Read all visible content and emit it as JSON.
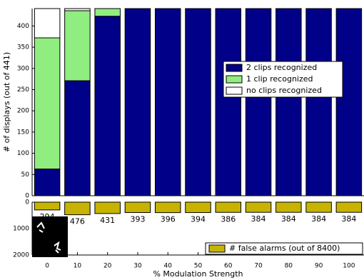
{
  "chart_data": [
    {
      "type": "stacked_bar",
      "ylabel": "# of displays (out of 441)",
      "ylim": [
        0,
        441
      ],
      "yticks": [
        0,
        50,
        100,
        150,
        200,
        250,
        300,
        350,
        400
      ],
      "legend": "center-right",
      "series": [
        {
          "name": "2 clips recognized",
          "color": "#000088",
          "values": [
            63,
            271,
            423,
            441,
            441,
            441,
            441,
            441,
            441,
            441,
            441
          ]
        },
        {
          "name": "1 clip recognized",
          "color": "#90ee80",
          "values": [
            309,
            165,
            18,
            0,
            0,
            0,
            0,
            0,
            0,
            0,
            0
          ]
        },
        {
          "name": "no clips recognized",
          "color": "#ffffff",
          "values": [
            69,
            5,
            0,
            0,
            0,
            0,
            0,
            0,
            0,
            0,
            0
          ]
        }
      ]
    },
    {
      "type": "bar",
      "xlabel": "% Modulation Strength",
      "categories": [
        "0",
        "10",
        "20",
        "30",
        "40",
        "50",
        "60",
        "70",
        "80",
        "90",
        "100"
      ],
      "ylim": [
        0,
        2000
      ],
      "y_inverted": true,
      "yticks": [
        0,
        1000,
        2000
      ],
      "legend": "lower-right",
      "series": [
        {
          "name": "# false alarms (out of 8400)",
          "color": "#c8b400",
          "values": [
            294,
            476,
            431,
            393,
            396,
            394,
            386,
            384,
            384,
            384,
            384
          ]
        }
      ]
    }
  ]
}
